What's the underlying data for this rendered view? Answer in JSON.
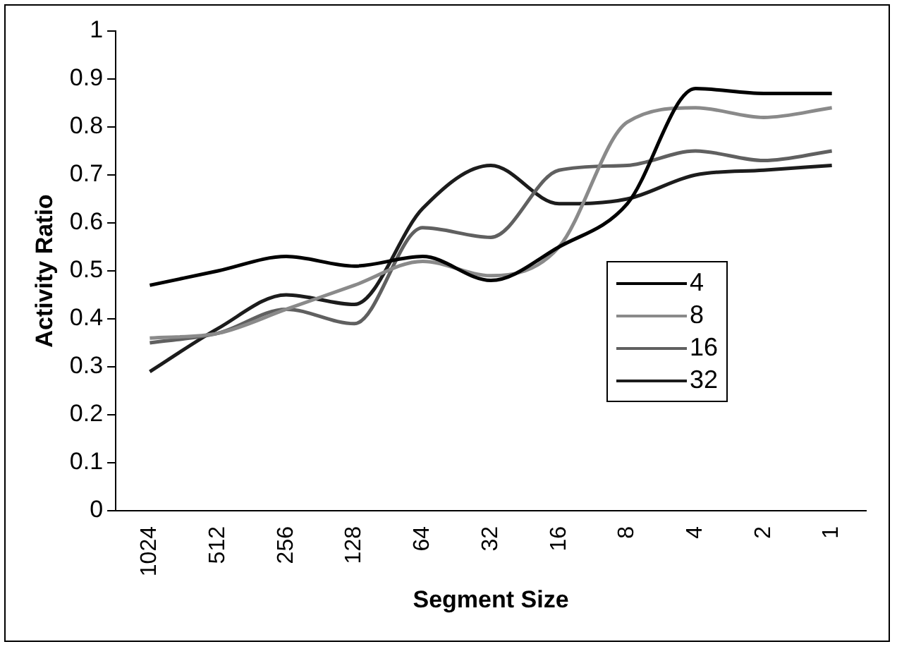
{
  "chart_data": {
    "type": "line",
    "xlabel": "Segment Size",
    "ylabel": "Activity Ratio",
    "categories": [
      "1024",
      "512",
      "256",
      "128",
      "64",
      "32",
      "16",
      "8",
      "4",
      "2",
      "1"
    ],
    "ylim": [
      0,
      1
    ],
    "yticks": [
      0,
      0.1,
      0.2,
      0.3,
      0.4,
      0.5,
      0.6,
      0.7,
      0.8,
      0.9,
      1
    ],
    "grid": false,
    "legend": "right",
    "marker": "none",
    "line_style": "solid",
    "series": [
      {
        "name": "4",
        "color": "#000000",
        "values": [
          0.47,
          0.5,
          0.53,
          0.51,
          0.53,
          0.48,
          0.55,
          0.64,
          0.88,
          0.87,
          0.87
        ]
      },
      {
        "name": "8",
        "color": "#8a8a8a",
        "values": [
          0.36,
          0.37,
          0.42,
          0.47,
          0.52,
          0.49,
          0.55,
          0.81,
          0.84,
          0.82,
          0.84
        ]
      },
      {
        "name": "16",
        "color": "#606060",
        "values": [
          0.35,
          0.37,
          0.42,
          0.39,
          0.59,
          0.57,
          0.71,
          0.72,
          0.75,
          0.73,
          0.75
        ]
      },
      {
        "name": "32",
        "color": "#1c1c1c",
        "values": [
          0.29,
          0.38,
          0.45,
          0.43,
          0.63,
          0.72,
          0.64,
          0.65,
          0.7,
          0.71,
          0.72
        ]
      }
    ]
  }
}
